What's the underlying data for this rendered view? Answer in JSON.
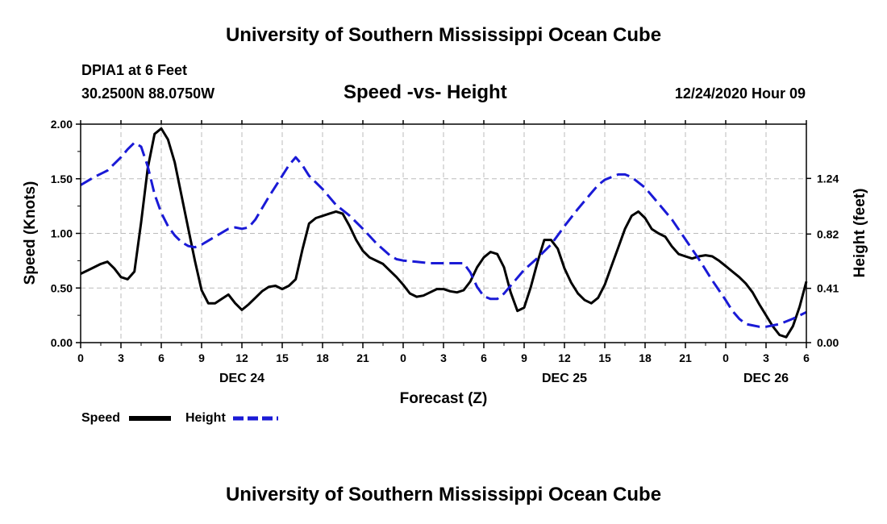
{
  "header": {
    "title": "University of Southern Mississippi Ocean Cube",
    "station": "DPIA1 at 6 Feet",
    "coords": "30.2500N 88.0750W",
    "subtitle": "Speed -vs- Height",
    "datetime": "12/24/2020 Hour 09"
  },
  "footer": {
    "title": "University of Southern Mississippi Ocean Cube"
  },
  "legend": {
    "speed_label": "Speed",
    "height_label": "Height"
  },
  "colors": {
    "speed": "#000000",
    "height": "#1a1ad6",
    "grid": "#bbbbbb"
  },
  "chart_data": {
    "type": "line",
    "title": "Speed -vs- Height",
    "xlabel": "Forecast (Z)",
    "ylabel": "Speed (Knots)",
    "y2label": "Height (feet)",
    "x_range_hours": [
      0,
      54
    ],
    "ylim": [
      0,
      2.0
    ],
    "y2lim": [
      0,
      1.65
    ],
    "grid": true,
    "x_ticks": [
      {
        "h": 0,
        "label": "0"
      },
      {
        "h": 3,
        "label": "3"
      },
      {
        "h": 6,
        "label": "6"
      },
      {
        "h": 9,
        "label": "9"
      },
      {
        "h": 12,
        "label": "12"
      },
      {
        "h": 15,
        "label": "15"
      },
      {
        "h": 18,
        "label": "18"
      },
      {
        "h": 21,
        "label": "21"
      },
      {
        "h": 24,
        "label": "0"
      },
      {
        "h": 27,
        "label": "3"
      },
      {
        "h": 30,
        "label": "6"
      },
      {
        "h": 33,
        "label": "9"
      },
      {
        "h": 36,
        "label": "12"
      },
      {
        "h": 39,
        "label": "15"
      },
      {
        "h": 42,
        "label": "18"
      },
      {
        "h": 45,
        "label": "21"
      },
      {
        "h": 48,
        "label": "0"
      },
      {
        "h": 51,
        "label": "3"
      },
      {
        "h": 54,
        "label": "6"
      }
    ],
    "date_labels": [
      {
        "h": 12,
        "label": "DEC 24"
      },
      {
        "h": 36,
        "label": "DEC 25"
      },
      {
        "h": 51,
        "label": "DEC 26"
      }
    ],
    "y_ticks": [
      {
        "v": 0,
        "label": "0.00"
      },
      {
        "v": 0.5,
        "label": "0.50"
      },
      {
        "v": 1.0,
        "label": "1.00"
      },
      {
        "v": 1.5,
        "label": "1.50"
      },
      {
        "v": 2.0,
        "label": "2.00"
      }
    ],
    "y2_ticks": [
      {
        "v": 0,
        "label": "0.00"
      },
      {
        "v": 0.41,
        "label": "0.41"
      },
      {
        "v": 0.82,
        "label": "0.82"
      },
      {
        "v": 1.24,
        "label": "1.24"
      }
    ],
    "series": [
      {
        "name": "Speed",
        "axis": "left",
        "style": "solid",
        "points": [
          [
            0,
            0.63
          ],
          [
            0.5,
            0.66
          ],
          [
            1,
            0.69
          ],
          [
            1.5,
            0.72
          ],
          [
            2,
            0.74
          ],
          [
            2.5,
            0.68
          ],
          [
            3,
            0.6
          ],
          [
            3.5,
            0.58
          ],
          [
            4,
            0.65
          ],
          [
            4.5,
            1.1
          ],
          [
            5,
            1.6
          ],
          [
            5.5,
            1.91
          ],
          [
            6,
            1.96
          ],
          [
            6.5,
            1.86
          ],
          [
            7,
            1.65
          ],
          [
            7.5,
            1.35
          ],
          [
            8,
            1.05
          ],
          [
            8.5,
            0.75
          ],
          [
            9,
            0.48
          ],
          [
            9.5,
            0.36
          ],
          [
            10,
            0.36
          ],
          [
            10.5,
            0.4
          ],
          [
            11,
            0.44
          ],
          [
            11.5,
            0.36
          ],
          [
            12,
            0.3
          ],
          [
            12.5,
            0.35
          ],
          [
            13,
            0.41
          ],
          [
            13.5,
            0.47
          ],
          [
            14,
            0.51
          ],
          [
            14.5,
            0.52
          ],
          [
            15,
            0.49
          ],
          [
            15.5,
            0.52
          ],
          [
            16,
            0.58
          ],
          [
            16.5,
            0.85
          ],
          [
            17,
            1.09
          ],
          [
            17.5,
            1.14
          ],
          [
            18,
            1.16
          ],
          [
            18.5,
            1.18
          ],
          [
            19,
            1.2
          ],
          [
            19.5,
            1.18
          ],
          [
            20,
            1.07
          ],
          [
            20.5,
            0.94
          ],
          [
            21,
            0.84
          ],
          [
            21.5,
            0.78
          ],
          [
            22,
            0.75
          ],
          [
            22.5,
            0.72
          ],
          [
            23,
            0.66
          ],
          [
            23.5,
            0.6
          ],
          [
            24,
            0.53
          ],
          [
            24.5,
            0.45
          ],
          [
            25,
            0.42
          ],
          [
            25.5,
            0.43
          ],
          [
            26,
            0.46
          ],
          [
            26.5,
            0.49
          ],
          [
            27,
            0.49
          ],
          [
            27.5,
            0.47
          ],
          [
            28,
            0.46
          ],
          [
            28.5,
            0.48
          ],
          [
            29,
            0.56
          ],
          [
            29.5,
            0.69
          ],
          [
            30,
            0.78
          ],
          [
            30.5,
            0.83
          ],
          [
            31,
            0.81
          ],
          [
            31.5,
            0.69
          ],
          [
            32,
            0.46
          ],
          [
            32.5,
            0.29
          ],
          [
            33,
            0.32
          ],
          [
            33.5,
            0.51
          ],
          [
            34,
            0.74
          ],
          [
            34.5,
            0.94
          ],
          [
            35,
            0.94
          ],
          [
            35.5,
            0.86
          ],
          [
            36,
            0.68
          ],
          [
            36.5,
            0.55
          ],
          [
            37,
            0.45
          ],
          [
            37.5,
            0.39
          ],
          [
            38,
            0.36
          ],
          [
            38.5,
            0.41
          ],
          [
            39,
            0.53
          ],
          [
            39.5,
            0.7
          ],
          [
            40,
            0.87
          ],
          [
            40.5,
            1.04
          ],
          [
            41,
            1.16
          ],
          [
            41.5,
            1.2
          ],
          [
            42,
            1.14
          ],
          [
            42.5,
            1.04
          ],
          [
            43,
            1.0
          ],
          [
            43.5,
            0.97
          ],
          [
            44,
            0.88
          ],
          [
            44.5,
            0.81
          ],
          [
            45,
            0.79
          ],
          [
            45.5,
            0.77
          ],
          [
            46,
            0.79
          ],
          [
            46.5,
            0.8
          ],
          [
            47,
            0.79
          ],
          [
            47.5,
            0.75
          ],
          [
            48,
            0.7
          ],
          [
            48.5,
            0.65
          ],
          [
            49,
            0.6
          ],
          [
            49.5,
            0.54
          ],
          [
            50,
            0.46
          ],
          [
            50.5,
            0.35
          ],
          [
            51,
            0.25
          ],
          [
            51.5,
            0.15
          ],
          [
            52,
            0.07
          ],
          [
            52.5,
            0.05
          ],
          [
            53,
            0.15
          ],
          [
            53.5,
            0.33
          ],
          [
            54,
            0.56
          ]
        ]
      },
      {
        "name": "Height",
        "axis": "right",
        "style": "dashed",
        "points": [
          [
            0,
            1.19
          ],
          [
            1,
            1.25
          ],
          [
            2,
            1.3
          ],
          [
            3,
            1.4
          ],
          [
            3.5,
            1.46
          ],
          [
            4,
            1.51
          ],
          [
            4.5,
            1.48
          ],
          [
            5,
            1.33
          ],
          [
            5.5,
            1.12
          ],
          [
            6,
            0.98
          ],
          [
            6.5,
            0.88
          ],
          [
            7,
            0.81
          ],
          [
            7.5,
            0.76
          ],
          [
            8,
            0.73
          ],
          [
            8.5,
            0.72
          ],
          [
            9,
            0.74
          ],
          [
            10,
            0.8
          ],
          [
            11,
            0.86
          ],
          [
            11.5,
            0.87
          ],
          [
            12,
            0.86
          ],
          [
            12.5,
            0.87
          ],
          [
            13,
            0.93
          ],
          [
            14,
            1.1
          ],
          [
            15,
            1.26
          ],
          [
            15.5,
            1.34
          ],
          [
            16,
            1.4
          ],
          [
            16.5,
            1.34
          ],
          [
            17,
            1.26
          ],
          [
            18,
            1.16
          ],
          [
            19,
            1.04
          ],
          [
            20,
            0.96
          ],
          [
            21,
            0.86
          ],
          [
            22,
            0.75
          ],
          [
            23,
            0.66
          ],
          [
            23.5,
            0.63
          ],
          [
            24,
            0.62
          ],
          [
            25,
            0.61
          ],
          [
            26,
            0.6
          ],
          [
            27,
            0.6
          ],
          [
            28,
            0.6
          ],
          [
            28.5,
            0.6
          ],
          [
            29,
            0.53
          ],
          [
            29.5,
            0.42
          ],
          [
            30,
            0.35
          ],
          [
            30.5,
            0.33
          ],
          [
            31,
            0.33
          ],
          [
            31.5,
            0.37
          ],
          [
            32,
            0.43
          ],
          [
            33,
            0.55
          ],
          [
            34,
            0.64
          ],
          [
            35,
            0.74
          ],
          [
            36,
            0.88
          ],
          [
            37,
            1.01
          ],
          [
            38,
            1.13
          ],
          [
            38.5,
            1.19
          ],
          [
            39,
            1.23
          ],
          [
            39.5,
            1.25
          ],
          [
            40,
            1.27
          ],
          [
            40.5,
            1.27
          ],
          [
            41,
            1.25
          ],
          [
            42,
            1.17
          ],
          [
            43,
            1.05
          ],
          [
            44,
            0.93
          ],
          [
            45,
            0.78
          ],
          [
            46,
            0.63
          ],
          [
            47,
            0.47
          ],
          [
            48,
            0.32
          ],
          [
            48.5,
            0.24
          ],
          [
            49,
            0.18
          ],
          [
            49.5,
            0.14
          ],
          [
            50,
            0.13
          ],
          [
            50.5,
            0.12
          ],
          [
            51,
            0.12
          ],
          [
            52,
            0.14
          ],
          [
            53,
            0.18
          ],
          [
            54,
            0.23
          ]
        ]
      }
    ]
  }
}
